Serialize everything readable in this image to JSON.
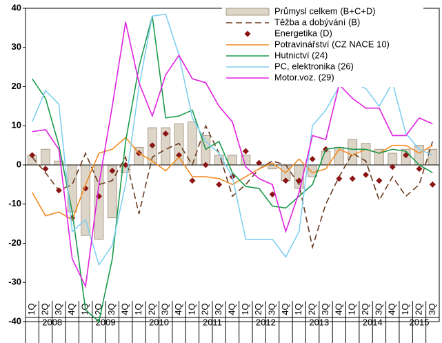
{
  "chart_data": {
    "type": "combo",
    "categories": [
      "1Q",
      "2Q",
      "3Q",
      "4Q",
      "1Q",
      "2Q",
      "3Q",
      "4Q",
      "1Q",
      "2Q",
      "3Q",
      "4Q",
      "1Q",
      "2Q",
      "3Q",
      "4Q",
      "1Q",
      "2Q",
      "3Q",
      "4Q",
      "1Q",
      "2Q",
      "3Q",
      "4Q",
      "1Q",
      "2Q",
      "3Q",
      "4Q",
      "1Q",
      "2Q",
      "3Q"
    ],
    "years": [
      "2008",
      "2009",
      "2010",
      "2011",
      "2012",
      "2013",
      "2014",
      "2015"
    ],
    "ylim": [
      -40,
      40
    ],
    "yticks": [
      -40,
      -30,
      -20,
      -10,
      0,
      10,
      20,
      30,
      40
    ],
    "grid": false,
    "series": [
      {
        "name": "Průmysl celkem (B+C+D)",
        "type": "bar",
        "color": "#ddd5c8",
        "values": [
          2.5,
          4,
          1,
          -12,
          -18,
          -19,
          -13.5,
          -2,
          4.5,
          9.5,
          9.5,
          10.5,
          11,
          7.5,
          2.5,
          2.5,
          2.5,
          0,
          -1,
          -4,
          -6,
          -3,
          3.5,
          4.5,
          6.5,
          5.5,
          4,
          3,
          4,
          5,
          4
        ]
      },
      {
        "name": "Těžba  a dobývání (B)",
        "type": "dashed",
        "color": "#6b3a1f",
        "values": [
          2,
          -2,
          -6.5,
          -5,
          3,
          -5,
          -4,
          2,
          -12.5,
          2,
          4,
          5.5,
          0,
          10,
          3,
          -8,
          -5,
          -1,
          1,
          0,
          -5,
          -21,
          -10,
          -3,
          3,
          1,
          -9,
          -3,
          -8,
          -5,
          6
        ]
      },
      {
        "name": "Energetika (D)",
        "type": "marker",
        "color": "#8b1414",
        "values": [
          2.5,
          -1,
          -6.5,
          -13.5,
          -6,
          -8,
          -1.5,
          0,
          3,
          5,
          8,
          2.5,
          -4,
          0,
          -5,
          -3,
          3.5,
          0.5,
          -7.5,
          -4,
          -4,
          1.5,
          4,
          -3.5,
          -3.5,
          -2.5,
          -4,
          -0.5,
          2.5,
          -1,
          -5
        ]
      },
      {
        "name": "Potravinářství (CZ NACE 10)",
        "type": "line",
        "color": "#f08a20",
        "values": [
          -7,
          -13,
          -12,
          -14,
          -5,
          3,
          4,
          7,
          3,
          1,
          -1.5,
          2,
          -3,
          -3,
          -3.5,
          -5,
          -3,
          -1,
          0.5,
          -2,
          1.5,
          -2,
          -1,
          4,
          2.5,
          4,
          3,
          5,
          5,
          3,
          5
        ]
      },
      {
        "name": "Hutnictví (24)",
        "type": "line",
        "color": "#1a9a4a",
        "values": [
          22,
          17,
          5,
          -12,
          -37,
          -40,
          -24,
          6,
          25,
          38,
          12,
          12.5,
          14,
          4,
          6,
          -2,
          -5.5,
          -6,
          -10.5,
          -11,
          -8,
          -5,
          4,
          4.5,
          4,
          4,
          3,
          4,
          3.5,
          0,
          -2
        ]
      },
      {
        "name": "PC, elektronika (26)",
        "type": "line",
        "color": "#80d0f0",
        "values": [
          11,
          19,
          15.5,
          -17,
          -14,
          -25.5,
          -20.5,
          -5,
          20,
          38,
          38.5,
          28,
          12,
          6,
          3,
          -3,
          -19,
          -19,
          -19,
          -23.5,
          -17,
          10,
          14,
          20,
          21,
          19.5,
          15,
          21,
          8,
          4,
          2.5
        ]
      },
      {
        "name": "Motor.voz. (29)",
        "type": "line",
        "color": "#e020e0",
        "values": [
          8.5,
          9,
          4,
          -24,
          -31,
          -5,
          15,
          36.5,
          21,
          12.5,
          23,
          28,
          22,
          21,
          15,
          11,
          -0.5,
          -3.5,
          -5,
          -17,
          -7,
          7.5,
          6.5,
          20.5,
          17,
          14.5,
          14.5,
          7.5,
          7.5,
          12,
          10.5
        ]
      }
    ]
  }
}
